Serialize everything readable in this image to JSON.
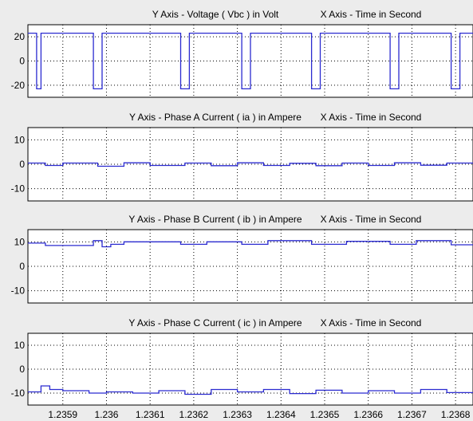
{
  "chart_data": [
    {
      "type": "line",
      "title_left": "Y Axis -  Voltage ( Vbc ) in Volt",
      "title_right": "X Axis - Time in Second",
      "ylim": [
        -30,
        30
      ],
      "yticks": [
        "20",
        "0",
        "-20"
      ],
      "ytick_values": [
        20,
        0,
        -20
      ],
      "x": [
        1.23582,
        1.23584,
        1.23584,
        1.23585,
        1.23585,
        1.23597,
        1.23597,
        1.23599,
        1.23599,
        1.23617,
        1.23617,
        1.23619,
        1.23619,
        1.23631,
        1.23631,
        1.23633,
        1.23633,
        1.23647,
        1.23647,
        1.23649,
        1.23649,
        1.23665,
        1.23665,
        1.23667,
        1.23667,
        1.23679,
        1.23679,
        1.23681,
        1.23681,
        1.23684
      ],
      "y": [
        23,
        23,
        -23,
        -23,
        23,
        23,
        -23,
        -23,
        23,
        23,
        -23,
        -23,
        23,
        23,
        -23,
        -23,
        23,
        23,
        -23,
        -23,
        23,
        23,
        -23,
        -23,
        23,
        23,
        -23,
        -23,
        23,
        23
      ],
      "color": "#2b2bd0"
    },
    {
      "type": "line",
      "title_left": "Y Axis - Phase A Current  ( ia ) in Ampere",
      "title_right": "X Axis - Time in Second",
      "ylim": [
        -15,
        15
      ],
      "yticks": [
        "10",
        "0",
        "-10"
      ],
      "ytick_values": [
        10,
        0,
        -10
      ],
      "x": [
        1.23582,
        1.23586,
        1.23586,
        1.2359,
        1.2359,
        1.23598,
        1.23598,
        1.23604,
        1.23604,
        1.2361,
        1.2361,
        1.23618,
        1.23618,
        1.23624,
        1.23624,
        1.2363,
        1.2363,
        1.23636,
        1.23636,
        1.23642,
        1.23642,
        1.23648,
        1.23648,
        1.23654,
        1.23654,
        1.2366,
        1.2366,
        1.23666,
        1.23666,
        1.23672,
        1.23672,
        1.23678,
        1.23678,
        1.23684
      ],
      "y": [
        0.5,
        0.5,
        -0.5,
        -0.5,
        0.5,
        0.5,
        -0.8,
        -0.8,
        0.6,
        0.6,
        -0.5,
        -0.5,
        0.5,
        0.5,
        -0.6,
        -0.6,
        0.6,
        0.6,
        -0.5,
        -0.5,
        0.4,
        0.4,
        -0.6,
        -0.6,
        0.5,
        0.5,
        -0.5,
        -0.5,
        0.6,
        0.6,
        -0.4,
        -0.4,
        0.5,
        0.5
      ],
      "color": "#2b2bd0"
    },
    {
      "type": "line",
      "title_left": "Y Axis - Phase B Current  ( ib ) in Ampere",
      "title_right": "X Axis - Time in Second",
      "ylim": [
        -15,
        15
      ],
      "yticks": [
        "10",
        "0",
        "-10"
      ],
      "ytick_values": [
        10,
        0,
        -10
      ],
      "x": [
        1.23582,
        1.23586,
        1.23586,
        1.23597,
        1.23597,
        1.23599,
        1.23599,
        1.23601,
        1.23601,
        1.23604,
        1.23604,
        1.23617,
        1.23617,
        1.23623,
        1.23623,
        1.23631,
        1.23631,
        1.23637,
        1.23637,
        1.23647,
        1.23647,
        1.23655,
        1.23655,
        1.23665,
        1.23665,
        1.23671,
        1.23671,
        1.23679,
        1.23679,
        1.23684
      ],
      "y": [
        9.5,
        9.5,
        8.5,
        8.5,
        10.5,
        10.5,
        8,
        8,
        9,
        9,
        10,
        10,
        9,
        9,
        10,
        10,
        9,
        9,
        10.5,
        10.5,
        9,
        9,
        10.2,
        10.2,
        9,
        9,
        10.5,
        10.5,
        8.8,
        8.8
      ],
      "color": "#2b2bd0"
    },
    {
      "type": "line",
      "title_left": "Y Axis - Phase C Current  ( ic ) in Ampere",
      "title_right": "X Axis - Time in Second",
      "ylim": [
        -15,
        15
      ],
      "yticks": [
        "10",
        "0",
        "-10"
      ],
      "ytick_values": [
        10,
        0,
        -10
      ],
      "xticks": [
        "1.2359",
        "1.236",
        "1.2361",
        "1.2362",
        "1.2363",
        "1.2364",
        "1.2365",
        "1.2366",
        "1.2367",
        "1.2368"
      ],
      "xtick_values": [
        1.2359,
        1.236,
        1.2361,
        1.2362,
        1.2363,
        1.2364,
        1.2365,
        1.2366,
        1.2367,
        1.2368
      ],
      "x": [
        1.23582,
        1.23585,
        1.23585,
        1.23587,
        1.23587,
        1.2359,
        1.2359,
        1.23596,
        1.23596,
        1.236,
        1.236,
        1.23606,
        1.23606,
        1.23612,
        1.23612,
        1.23618,
        1.23618,
        1.23624,
        1.23624,
        1.2363,
        1.2363,
        1.23636,
        1.23636,
        1.23642,
        1.23642,
        1.23648,
        1.23648,
        1.23654,
        1.23654,
        1.2366,
        1.2366,
        1.23666,
        1.23666,
        1.23672,
        1.23672,
        1.23678,
        1.23678,
        1.23684
      ],
      "y": [
        -9.5,
        -9.5,
        -7,
        -7,
        -8.5,
        -8.5,
        -9,
        -9,
        -10,
        -10,
        -9.5,
        -9.5,
        -10,
        -10,
        -9,
        -9,
        -10.5,
        -10.5,
        -8.5,
        -8.5,
        -9.5,
        -9.5,
        -8.5,
        -8.5,
        -10.2,
        -10.2,
        -8.8,
        -8.8,
        -10,
        -10,
        -9,
        -9,
        -10,
        -10,
        -8.5,
        -8.5,
        -9.8,
        -9.8
      ],
      "color": "#2b2bd0"
    }
  ],
  "xlim": [
    1.23582,
    1.23684
  ],
  "colors": {
    "background": "#ececec",
    "axes_bg": "#ffffff",
    "line": "#2b2bd0",
    "grid": "#000000"
  }
}
